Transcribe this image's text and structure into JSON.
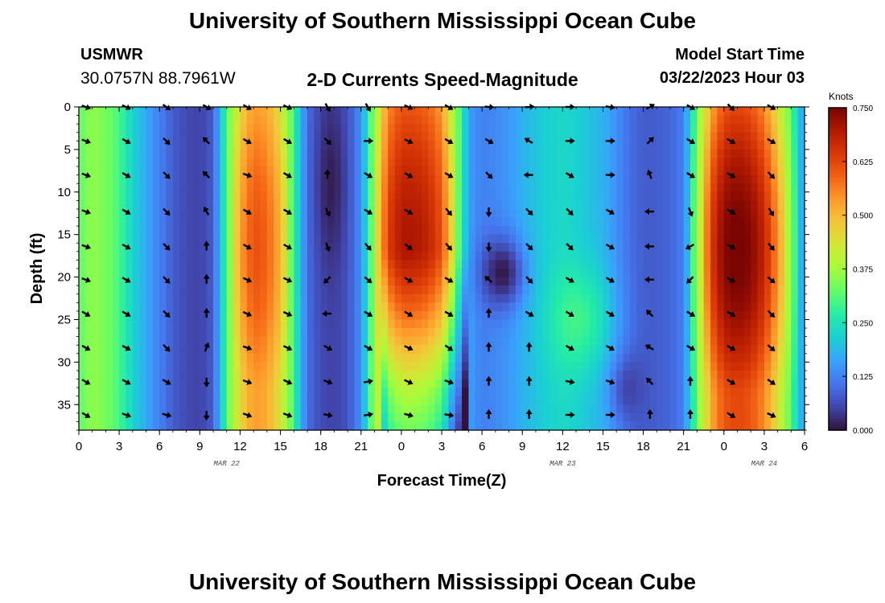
{
  "page": {
    "title": "University of Southern Mississippi Ocean Cube",
    "title_repeat": "University of Southern Mississippi Ocean Cube"
  },
  "station": {
    "name": "USMWR",
    "coords": "30.0757N  88.7961W"
  },
  "model": {
    "label": "Model Start Time",
    "start": "03/22/2023 Hour 03"
  },
  "colors": {
    "background": "#ffffff",
    "text": "#000000",
    "arrow": "#000000",
    "colormap": [
      "#30123b",
      "#4145ab",
      "#4675ed",
      "#39a2fc",
      "#1bcfd4",
      "#24eca6",
      "#61fc6c",
      "#a4fc3b",
      "#d1e834",
      "#f3c63a",
      "#fe9b2d",
      "#f36315",
      "#d93806",
      "#b11901",
      "#7a0402"
    ]
  },
  "chart_data": {
    "type": "heatmap",
    "title": "2-D Currents Speed-Magnitude",
    "xlabel": "Forecast Time(Z)",
    "ylabel": "Depth (ft)",
    "x_unit": "hours since 03/22/2023 00Z",
    "xlim": [
      0,
      54
    ],
    "ylim": [
      38,
      0
    ],
    "x_ticks": [
      {
        "x": 0,
        "label": "0"
      },
      {
        "x": 3,
        "label": "3"
      },
      {
        "x": 6,
        "label": "6"
      },
      {
        "x": 9,
        "label": "9"
      },
      {
        "x": 12,
        "label": "12"
      },
      {
        "x": 15,
        "label": "15"
      },
      {
        "x": 18,
        "label": "18"
      },
      {
        "x": 21,
        "label": "21"
      },
      {
        "x": 24,
        "label": "0"
      },
      {
        "x": 27,
        "label": "3"
      },
      {
        "x": 30,
        "label": "6"
      },
      {
        "x": 33,
        "label": "9"
      },
      {
        "x": 36,
        "label": "12"
      },
      {
        "x": 39,
        "label": "15"
      },
      {
        "x": 42,
        "label": "18"
      },
      {
        "x": 45,
        "label": "21"
      },
      {
        "x": 48,
        "label": "0"
      },
      {
        "x": 51,
        "label": "3"
      },
      {
        "x": 54,
        "label": "6"
      }
    ],
    "date_labels": [
      {
        "x": 11,
        "label": "MAR 22"
      },
      {
        "x": 36,
        "label": "MAR 23"
      },
      {
        "x": 51,
        "label": "MAR 24"
      }
    ],
    "y_ticks": [
      0,
      5,
      10,
      15,
      20,
      25,
      30,
      35
    ],
    "colorbar": {
      "label": "Knots",
      "min": 0.0,
      "max": 0.75,
      "ticks": [
        "0.000",
        "0.125",
        "0.250",
        "0.375",
        "0.500",
        "0.625",
        "0.750"
      ]
    },
    "speed_profile": {
      "note": "approximate surface-to-bottom speed (knots) at each hour; rows: depth 0..38 ft",
      "hours": [
        0,
        1,
        2,
        3,
        4,
        5,
        6,
        7,
        8,
        9,
        10,
        11,
        12,
        13,
        14,
        15,
        16,
        17,
        18,
        19,
        20,
        21,
        22,
        23,
        24,
        25,
        26,
        27,
        28,
        29,
        30,
        31,
        32,
        33,
        34,
        35,
        36,
        37,
        38,
        39,
        40,
        41,
        42,
        43,
        44,
        45,
        46,
        47,
        48,
        49,
        50,
        51,
        52,
        53,
        54
      ],
      "base": [
        0.32,
        0.36,
        0.34,
        0.3,
        0.22,
        0.17,
        0.12,
        0.08,
        0.06,
        0.05,
        0.08,
        0.3,
        0.5,
        0.58,
        0.56,
        0.48,
        0.28,
        0.1,
        0.06,
        0.05,
        0.07,
        0.14,
        0.38,
        0.6,
        0.66,
        0.66,
        0.64,
        0.58,
        0.38,
        0.16,
        0.12,
        0.13,
        0.15,
        0.18,
        0.2,
        0.22,
        0.23,
        0.22,
        0.2,
        0.18,
        0.14,
        0.1,
        0.08,
        0.08,
        0.09,
        0.12,
        0.32,
        0.56,
        0.66,
        0.68,
        0.66,
        0.6,
        0.48,
        0.3,
        0.14
      ]
    },
    "arrow_rows_depth": [
      0,
      4,
      8,
      12.3,
      16.4,
      20.3,
      24.3,
      28.3,
      32.3,
      36.2
    ],
    "arrow_cols_hours": [
      0.5,
      3.5,
      6.5,
      9.5,
      12.5,
      15.5,
      18.5,
      21.5,
      24.5,
      27.5,
      30.5,
      33.5,
      36.5,
      39.5,
      42.5,
      45.5,
      48.5,
      51.5
    ],
    "arrow_directions_deg": [
      [
        110,
        115,
        125,
        120,
        120,
        115,
        150,
        150,
        115,
        120,
        95,
        85,
        90,
        100,
        60,
        120,
        135,
        120
      ],
      [
        110,
        120,
        135,
        315,
        120,
        120,
        135,
        90,
        115,
        120,
        120,
        300,
        90,
        90,
        45,
        120,
        120,
        120
      ],
      [
        110,
        120,
        135,
        315,
        110,
        120,
        0,
        120,
        120,
        120,
        135,
        270,
        120,
        90,
        340,
        120,
        120,
        135
      ],
      [
        110,
        120,
        135,
        330,
        120,
        120,
        155,
        120,
        120,
        140,
        180,
        135,
        135,
        120,
        270,
        160,
        120,
        150
      ],
      [
        110,
        120,
        135,
        0,
        120,
        120,
        160,
        140,
        130,
        140,
        180,
        135,
        135,
        120,
        270,
        240,
        120,
        140
      ],
      [
        110,
        120,
        135,
        0,
        115,
        115,
        225,
        130,
        120,
        120,
        310,
        135,
        120,
        120,
        270,
        225,
        120,
        130
      ],
      [
        120,
        120,
        135,
        0,
        115,
        115,
        270,
        120,
        120,
        120,
        0,
        120,
        120,
        120,
        315,
        120,
        120,
        135
      ],
      [
        120,
        120,
        135,
        20,
        110,
        115,
        120,
        120,
        115,
        125,
        0,
        0,
        120,
        120,
        300,
        120,
        120,
        130
      ],
      [
        120,
        120,
        120,
        180,
        110,
        115,
        110,
        80,
        115,
        110,
        0,
        0,
        100,
        110,
        315,
        0,
        120,
        125
      ],
      [
        120,
        110,
        105,
        180,
        110,
        110,
        100,
        80,
        105,
        100,
        0,
        0,
        90,
        90,
        0,
        0,
        120,
        115
      ]
    ]
  }
}
